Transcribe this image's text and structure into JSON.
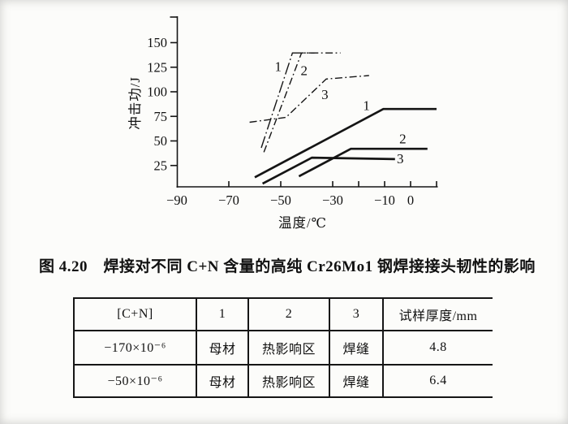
{
  "figure_caption": "图 4.20　焊接对不同 C+N 含量的高纯 Cr26Mo1 钢焊接接头韧性的影响",
  "chart_data": {
    "type": "line",
    "title": "",
    "xlabel": "温度/℃",
    "ylabel": "冲击功/J",
    "grid": false,
    "legend": "none (curves labeled 1, 2, 3 inline; 1=母材, 2=热影响区, 3=焊缝 per table)",
    "x_axis": {
      "range": [
        -90,
        10
      ],
      "tick_marks": [
        -70,
        -50,
        -30,
        -20,
        -10,
        0,
        10
      ],
      "labels": [
        {
          "v": -90,
          "t": "−90"
        },
        {
          "v": -70,
          "t": "−70"
        },
        {
          "v": -50,
          "t": "−50"
        },
        {
          "v": -30,
          "t": "−30"
        },
        {
          "v": -10,
          "t": "−10"
        },
        {
          "v": 0,
          "t": "0"
        }
      ]
    },
    "y_axis": {
      "range": [
        0,
        175
      ],
      "ticks": [
        {
          "v": 25,
          "t": "25"
        },
        {
          "v": 50,
          "t": "50"
        },
        {
          "v": 75,
          "t": "75"
        },
        {
          "v": 100,
          "t": "100"
        },
        {
          "v": 125,
          "t": "125"
        },
        {
          "v": 150,
          "t": "150"
        }
      ]
    },
    "series": [
      {
        "label": "1",
        "group": "thin dash-dot set",
        "style": "dashdot-long",
        "points": [
          [
            -57.5,
            43
          ],
          [
            -45.5,
            139.5
          ],
          [
            -37,
            139.5
          ]
        ],
        "label_at": [
          -51,
          125.5
        ]
      },
      {
        "label": "2",
        "group": "thin dash-dot set",
        "style": "dashdot",
        "points": [
          [
            -56.5,
            38.5
          ],
          [
            -42,
            139.5
          ],
          [
            -27,
            139.5
          ]
        ],
        "label_at": [
          -41,
          121.5
        ]
      },
      {
        "label": "3",
        "group": "thin dash-dot set",
        "style": "dashdot",
        "points": [
          [
            -62,
            69
          ],
          [
            -48,
            74
          ],
          [
            -32.5,
            113
          ],
          [
            -16,
            116.5
          ]
        ],
        "label_at": [
          -33,
          97
        ]
      },
      {
        "label": "1",
        "group": "thick solid set",
        "style": "solid",
        "points": [
          [
            -60,
            13
          ],
          [
            -10.5,
            82.5
          ],
          [
            10,
            82.5
          ]
        ],
        "label_at": [
          -17,
          86
        ]
      },
      {
        "label": "2",
        "group": "thick solid set",
        "style": "solid",
        "points": [
          [
            -43,
            14
          ],
          [
            -23,
            42
          ],
          [
            6.5,
            42
          ]
        ],
        "label_at": [
          -3,
          52
        ]
      },
      {
        "label": "3",
        "group": "thick solid set",
        "style": "solid",
        "points": [
          [
            -57,
            6.5
          ],
          [
            -38,
            33
          ],
          [
            -6,
            31.5
          ]
        ],
        "label_at": [
          -4,
          32
        ]
      }
    ]
  },
  "table": {
    "headers": [
      "[C+N]",
      "1",
      "2",
      "3",
      "试样厚度/mm"
    ],
    "rows": [
      [
        "−170×10⁻⁶",
        "母材",
        "热影响区",
        "焊缝",
        "4.8"
      ],
      [
        "−50×10⁻⁶",
        "母材",
        "热影响区",
        "焊缝",
        "6.4"
      ]
    ]
  }
}
